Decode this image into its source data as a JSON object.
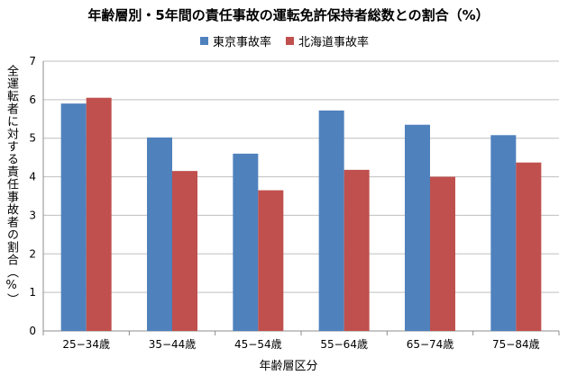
{
  "chart_data": {
    "type": "bar",
    "title": "年齢層別・5年間の責任事故の運転免許保持者総数との割合（%）",
    "xlabel": "年齢層区分",
    "ylabel": "全運転者に対する責任事故者の割合（%）",
    "categories": [
      "25−34歳",
      "35−44歳",
      "45−54歳",
      "55−64歳",
      "65−74歳",
      "75−84歳"
    ],
    "series": [
      {
        "name": "東京事故率",
        "color": "#4f81bd",
        "values": [
          5.9,
          5.02,
          4.6,
          5.72,
          5.35,
          5.08
        ]
      },
      {
        "name": "北海道事故率",
        "color": "#c0504d",
        "values": [
          6.05,
          4.15,
          3.65,
          4.18,
          4.0,
          4.37
        ]
      }
    ],
    "ylim": [
      0,
      7
    ],
    "yticks": [
      0,
      1,
      2,
      3,
      4,
      5,
      6,
      7
    ],
    "grid": true,
    "legend_position": "top"
  }
}
